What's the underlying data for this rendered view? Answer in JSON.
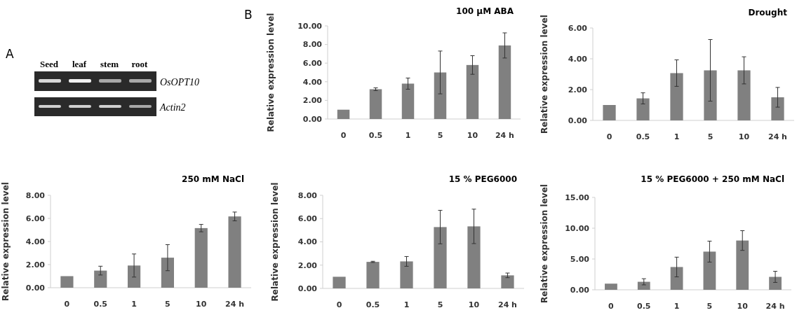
{
  "chart_data": [
    {
      "type": "other",
      "annotations": [
        "A",
        "Seed",
        "leaf",
        "stem",
        "root",
        "OsOPT10",
        "Actin2"
      ]
    },
    {
      "type": "bar",
      "title": "100 μM ABA",
      "ylabel": "Relative expression level",
      "annotations": [
        "B"
      ],
      "categories": [
        "0",
        "0.5",
        "1",
        "5",
        "10",
        "24 h"
      ],
      "values": [
        1.0,
        3.2,
        3.8,
        5.0,
        5.8,
        7.9
      ],
      "errors": [
        null,
        0.15,
        0.6,
        2.3,
        1.0,
        1.35
      ],
      "color": "#808080",
      "ylim": [
        0,
        10
      ],
      "yticks": [
        {
          "value": 0,
          "label": "0.00"
        },
        {
          "value": 2,
          "label": "2.00"
        },
        {
          "value": 4,
          "label": "4.00"
        },
        {
          "value": 6,
          "label": "6.00"
        },
        {
          "value": 8,
          "label": "8.00"
        },
        {
          "value": 10,
          "label": "10.00"
        }
      ]
    },
    {
      "type": "bar",
      "title": "Drought",
      "ylabel": "Relative expression level",
      "categories": [
        "0",
        "0.5",
        "1",
        "5",
        "10",
        "24 h"
      ],
      "values": [
        1.0,
        1.43,
        3.07,
        3.25,
        3.25,
        1.5
      ],
      "errors": [
        null,
        0.36,
        0.86,
        2.0,
        0.88,
        0.64
      ],
      "color": "#808080",
      "ylim": [
        0,
        6
      ],
      "yticks": [
        {
          "value": 0,
          "label": "0.00"
        },
        {
          "value": 2,
          "label": "2.00"
        },
        {
          "value": 4,
          "label": "4.00"
        },
        {
          "value": 6,
          "label": "6.00"
        }
      ]
    },
    {
      "type": "bar",
      "title": "250 mM NaCl",
      "ylabel": "Relative expression level",
      "categories": [
        "0",
        "0.5",
        "1",
        "5",
        "10",
        "24 h"
      ],
      "values": [
        1.0,
        1.48,
        1.92,
        2.6,
        5.16,
        6.17
      ],
      "errors": [
        null,
        0.38,
        1.0,
        1.13,
        0.32,
        0.38
      ],
      "color": "#808080",
      "ylim": [
        0,
        8
      ],
      "yticks": [
        {
          "value": 0,
          "label": "0.00"
        },
        {
          "value": 2,
          "label": "2.00"
        },
        {
          "value": 4,
          "label": "4.00"
        },
        {
          "value": 6,
          "label": "6.00"
        },
        {
          "value": 8,
          "label": "8.00"
        }
      ]
    },
    {
      "type": "bar",
      "title": "15 %  PEG6000",
      "ylabel": "Relative expression level",
      "categories": [
        "0",
        "0.5",
        "1",
        "5",
        "10",
        "24 h"
      ],
      "values": [
        1.0,
        2.28,
        2.32,
        5.27,
        5.33,
        1.12
      ],
      "errors": [
        null,
        0.05,
        0.42,
        1.44,
        1.48,
        0.2
      ],
      "color": "#808080",
      "ylim": [
        0,
        8
      ],
      "yticks": [
        {
          "value": 0,
          "label": "0.00"
        },
        {
          "value": 2,
          "label": "2.00"
        },
        {
          "value": 4,
          "label": "4.00"
        },
        {
          "value": 6,
          "label": "6.00"
        },
        {
          "value": 8,
          "label": "8.00"
        }
      ]
    },
    {
      "type": "bar",
      "title": "15 % PEG6000 + 250 mM NaCl",
      "ylabel": "Relative expression level",
      "categories": [
        "0",
        "0.5",
        "1",
        "5",
        "10",
        "24 h"
      ],
      "values": [
        1.0,
        1.3,
        3.7,
        6.2,
        8.0,
        2.1
      ],
      "errors": [
        null,
        0.5,
        1.6,
        1.7,
        1.6,
        0.9
      ],
      "color": "#808080",
      "ylim": [
        0,
        15
      ],
      "yticks": [
        {
          "value": 0,
          "label": "0.00"
        },
        {
          "value": 5,
          "label": "5.00"
        },
        {
          "value": 10,
          "label": "10.00"
        },
        {
          "value": 15,
          "label": "15.00"
        }
      ]
    }
  ]
}
